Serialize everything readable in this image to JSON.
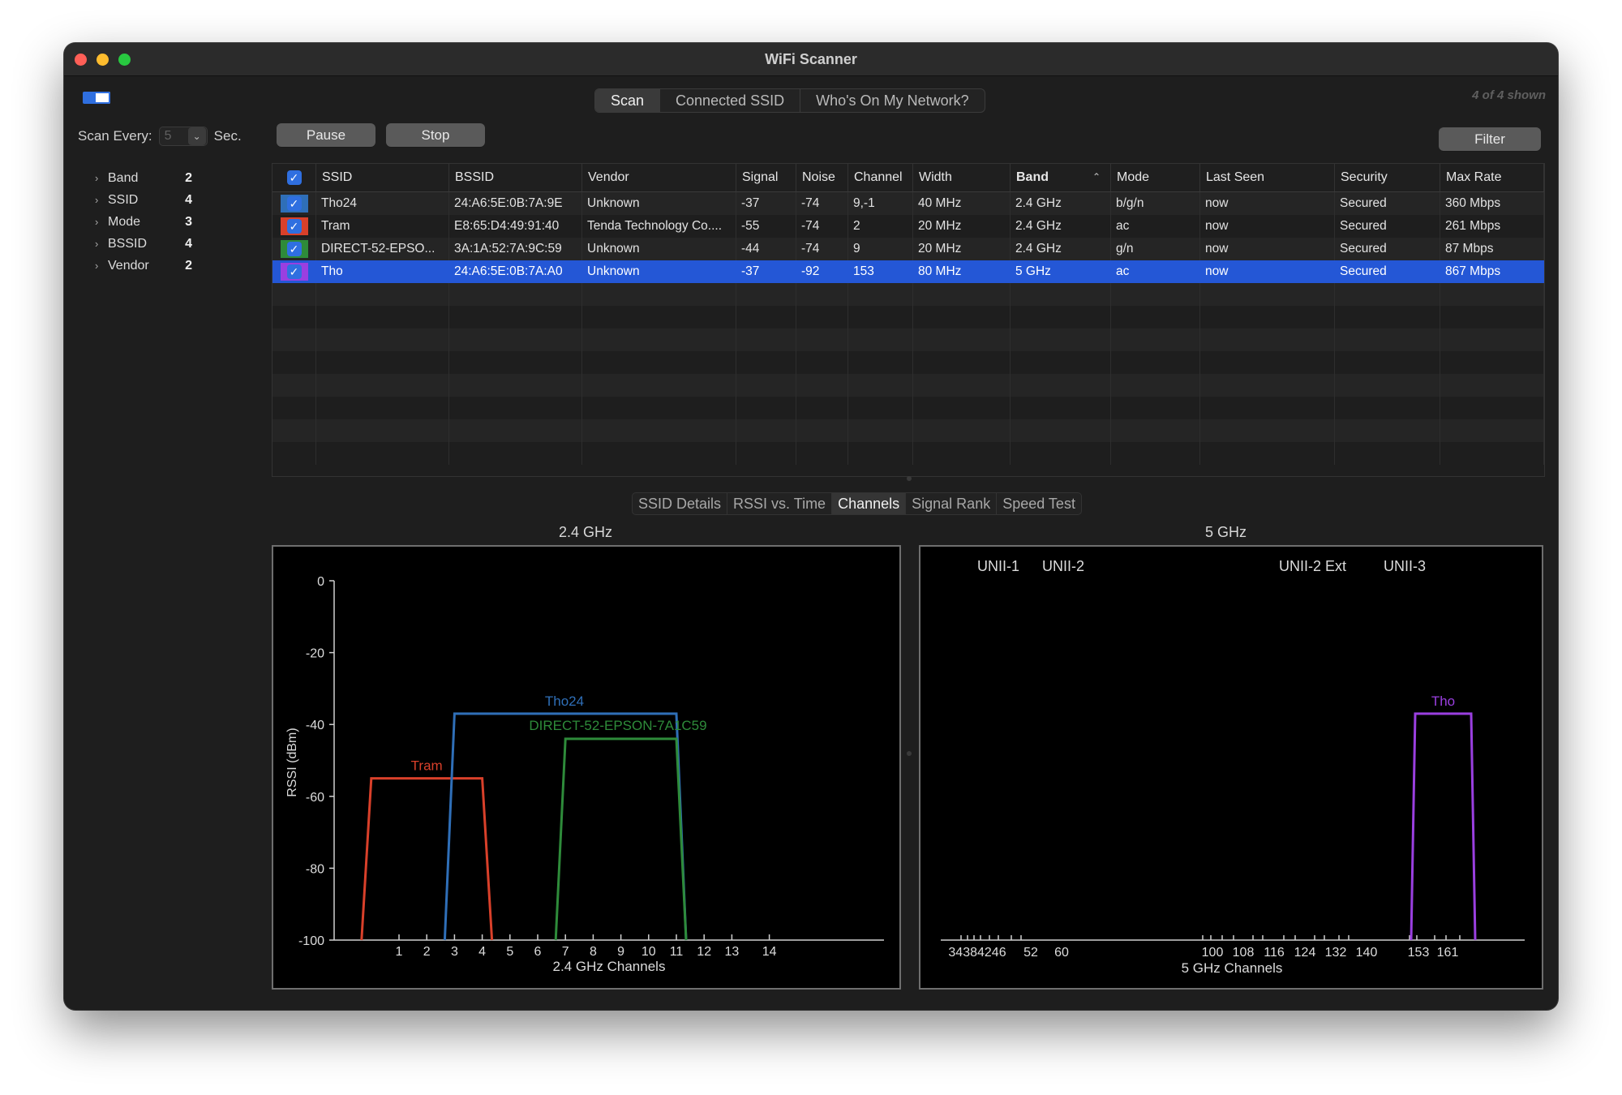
{
  "window": {
    "title": "WiFi Scanner"
  },
  "toolbar": {
    "tabs": [
      {
        "label": "Scan",
        "active": true
      },
      {
        "label": "Connected SSID",
        "active": false
      },
      {
        "label": "Who's On My Network?",
        "active": false
      }
    ],
    "shown_text": "4 of 4 shown",
    "scan_every_label": "Scan Every:",
    "scan_every_value": "5",
    "scan_every_unit": "Sec.",
    "pause_label": "Pause",
    "stop_label": "Stop",
    "filter_label": "Filter"
  },
  "sidebar": {
    "groups": [
      {
        "label": "Band",
        "count": "2"
      },
      {
        "label": "SSID",
        "count": "4"
      },
      {
        "label": "Mode",
        "count": "3"
      },
      {
        "label": "BSSID",
        "count": "4"
      },
      {
        "label": "Vendor",
        "count": "2"
      }
    ]
  },
  "table": {
    "columns": [
      "SSID",
      "BSSID",
      "Vendor",
      "Signal",
      "Noise",
      "Channel",
      "Width",
      "Band",
      "Mode",
      "Last Seen",
      "Security",
      "Max Rate"
    ],
    "sorted_column": "Band",
    "rows": [
      {
        "color": "#2f6fb8",
        "ssid": "Tho24",
        "bssid": "24:A6:5E:0B:7A:9E",
        "vendor": "Unknown",
        "signal": "-37",
        "noise": "-74",
        "channel": "9,-1",
        "width": "40 MHz",
        "band": "2.4 GHz",
        "mode": "b/g/n",
        "last_seen": "now",
        "security": "Secured",
        "max_rate": "360 Mbps",
        "selected": false
      },
      {
        "color": "#d9402a",
        "ssid": "Tram",
        "bssid": "E8:65:D4:49:91:40",
        "vendor": "Tenda Technology Co....",
        "signal": "-55",
        "noise": "-74",
        "channel": "2",
        "width": "20 MHz",
        "band": "2.4 GHz",
        "mode": "ac",
        "last_seen": "now",
        "security": "Secured",
        "max_rate": "261 Mbps",
        "selected": false
      },
      {
        "color": "#2e8b3a",
        "ssid": "DIRECT-52-EPSO...",
        "bssid": "3A:1A:52:7A:9C:59",
        "vendor": "Unknown",
        "signal": "-44",
        "noise": "-74",
        "channel": "9",
        "width": "20 MHz",
        "band": "2.4 GHz",
        "mode": "g/n",
        "last_seen": "now",
        "security": "Secured",
        "max_rate": "87 Mbps",
        "selected": false
      },
      {
        "color": "#9a3fe0",
        "ssid": "Tho",
        "bssid": "24:A6:5E:0B:7A:A0",
        "vendor": "Unknown",
        "signal": "-37",
        "noise": "-92",
        "channel": "153",
        "width": "80 MHz",
        "band": "5 GHz",
        "mode": "ac",
        "last_seen": "now",
        "security": "Secured",
        "max_rate": "867 Mbps",
        "selected": true
      }
    ]
  },
  "detail_tabs": [
    {
      "label": "SSID Details",
      "active": false
    },
    {
      "label": "RSSI vs. Time",
      "active": false
    },
    {
      "label": "Channels",
      "active": true
    },
    {
      "label": "Signal Rank",
      "active": false
    },
    {
      "label": "Speed Test",
      "active": false
    }
  ],
  "colors": {
    "accent": "#2457d6",
    "tho24": "#2f6fb8",
    "tram": "#d9402a",
    "direct": "#2e8b3a",
    "tho": "#9a3fe0"
  },
  "chart_data": [
    {
      "type": "line",
      "title": "2.4 GHz",
      "xlabel": "2.4 GHz Channels",
      "ylabel": "RSSI (dBm)",
      "ylim": [
        -100,
        0
      ],
      "yticks": [
        0,
        -20,
        -40,
        -60,
        -80,
        -100
      ],
      "xticks": [
        1,
        2,
        3,
        4,
        5,
        6,
        7,
        8,
        9,
        10,
        11,
        12,
        13,
        14
      ],
      "series": [
        {
          "name": "Tram",
          "color": "#d9402a",
          "center": 2,
          "width_mhz": 20,
          "rssi": -55
        },
        {
          "name": "Tho24",
          "color": "#2f6fb8",
          "center": 7,
          "width_mhz": 40,
          "rssi": -37
        },
        {
          "name": "DIRECT-52-EPSON-7A1C59",
          "color": "#2e8b3a",
          "center": 9,
          "width_mhz": 20,
          "rssi": -44
        }
      ]
    },
    {
      "type": "line",
      "title": "5 GHz",
      "xlabel": "5 GHz Channels",
      "ylim": [
        -100,
        0
      ],
      "band_labels": [
        "UNII-1",
        "UNII-2",
        "UNII-2 Ext",
        "UNII-3"
      ],
      "xtick_labels": [
        "34384246",
        "52",
        "60",
        "100",
        "108",
        "116",
        "124",
        "132",
        "140",
        "153",
        "161"
      ],
      "series": [
        {
          "name": "Tho",
          "color": "#9a3fe0",
          "center": 155,
          "width_mhz": 80,
          "rssi": -37
        }
      ]
    }
  ]
}
